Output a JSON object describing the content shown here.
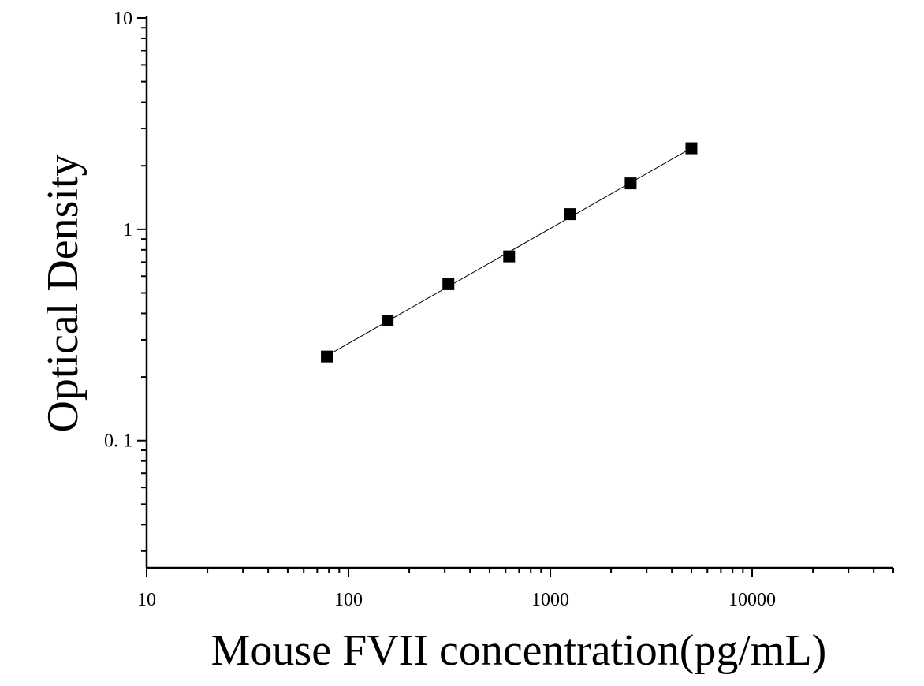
{
  "chart_data": {
    "type": "scatter",
    "title": "",
    "xlabel": "Mouse FVII concentration(pg/mL)",
    "ylabel": "Optical Density",
    "x_scale": "log",
    "y_scale": "log",
    "xlim": [
      10,
      50000
    ],
    "ylim": [
      0.025,
      10
    ],
    "x_tick_values": [
      10,
      100,
      1000,
      10000
    ],
    "x_tick_labels": [
      "10",
      "100",
      "1000",
      "10000"
    ],
    "y_tick_values": [
      0.1,
      1,
      10
    ],
    "y_tick_labels": [
      "0. 1",
      "1",
      "10"
    ],
    "grid": false,
    "legend": "none",
    "series": [
      {
        "marker": "square",
        "color": "#000000",
        "fit_line": true,
        "points": [
          {
            "x": 78.125,
            "y": 0.25
          },
          {
            "x": 156.25,
            "y": 0.37
          },
          {
            "x": 312.5,
            "y": 0.55
          },
          {
            "x": 625,
            "y": 0.745
          },
          {
            "x": 1250,
            "y": 1.18
          },
          {
            "x": 2500,
            "y": 1.65
          },
          {
            "x": 5000,
            "y": 2.42
          }
        ]
      }
    ]
  }
}
